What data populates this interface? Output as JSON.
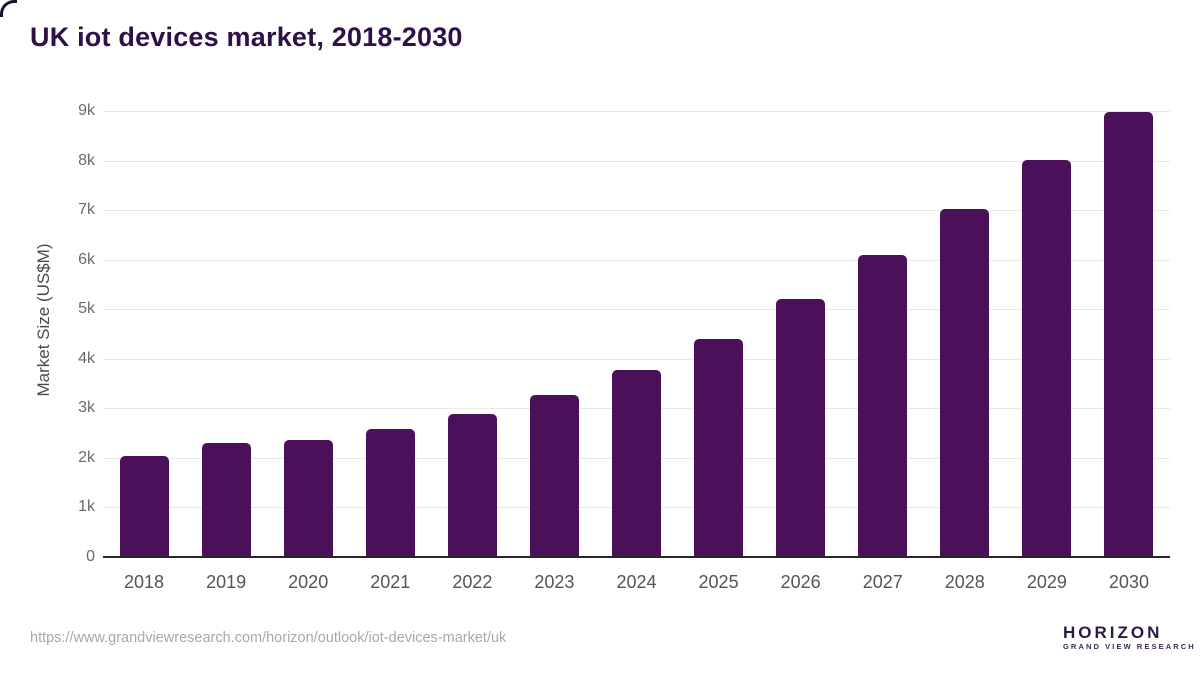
{
  "page": {
    "title": "UK iot devices market, 2018-2030"
  },
  "chart_data": {
    "type": "bar",
    "title": "UK iot devices market, 2018-2030",
    "xlabel": "",
    "ylabel": "Market Size (US$M)",
    "categories": [
      "2018",
      "2019",
      "2020",
      "2021",
      "2022",
      "2023",
      "2024",
      "2025",
      "2026",
      "2027",
      "2028",
      "2029",
      "2030"
    ],
    "values": [
      2040,
      2310,
      2360,
      2590,
      2880,
      3260,
      3770,
      4400,
      5210,
      6100,
      7030,
      8010,
      8980
    ],
    "ylim": [
      0,
      9000
    ],
    "ytick_step": 1000,
    "ytick_labels": [
      "0",
      "1k",
      "2k",
      "3k",
      "4k",
      "5k",
      "6k",
      "7k",
      "8k",
      "9k"
    ],
    "grid": true,
    "legend": false,
    "bar_color": "#4a115a"
  },
  "footer": {
    "source_url": "https://www.grandviewresearch.com/horizon/outlook/iot-devices-market/uk",
    "logo": {
      "name": "HORIZON",
      "subtitle": "GRAND VIEW RESEARCH"
    }
  },
  "colors": {
    "title": "#2d1147",
    "bar": "#4a115a",
    "gridline": "#e9e9ec",
    "axis_line": "#262626",
    "y_tick": "#6b6b6b",
    "x_tick": "#555555",
    "url_text": "#a8a8a8",
    "logo_purple": "#2b1a47",
    "logo_blue": "#56c3f2"
  }
}
